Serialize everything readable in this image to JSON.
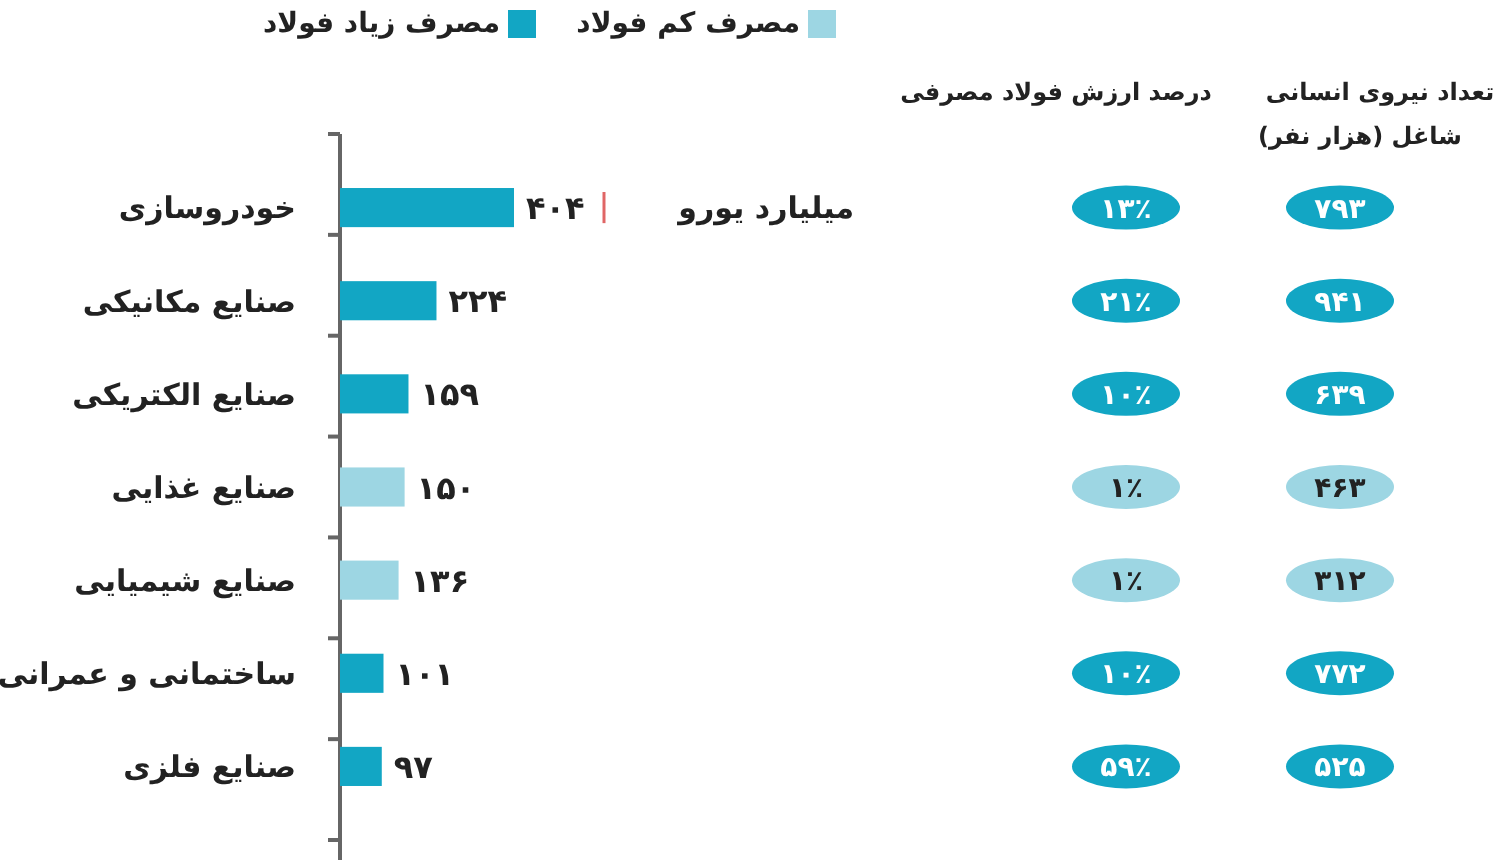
{
  "chart_data": [
    {
      "type": "bar",
      "orientation": "horizontal",
      "stacked": true,
      "legend": "top",
      "tick_labels": "y",
      "categories": [
        "خودروسازی",
        "صنایع مکانیکی",
        "صنایع الکتریکی",
        "صنایع غذایی",
        "صنایع شیمیایی",
        "ساختمانی و عمرانی",
        "صنایع فلزی"
      ],
      "series": [
        {
          "name": "مصرف زیاد فولاد",
          "color": "#12a6c4",
          "values": [
            404,
            224,
            159,
            null,
            null,
            101,
            97
          ],
          "value_labels": [
            "۴۰۴",
            "۲۲۴",
            "۱۵۹",
            null,
            null,
            "۱۰۱",
            "۹۷"
          ]
        },
        {
          "name": "مصرف کم فولاد",
          "color": "#9dd6e3",
          "values": [
            null,
            null,
            null,
            150,
            136,
            null,
            null
          ],
          "value_labels": [
            null,
            null,
            null,
            "۱۵۰",
            "۱۳۶",
            null,
            null
          ]
        }
      ],
      "annotations": [
        "میلیارد یورو"
      ]
    },
    {
      "type": "other",
      "title": "درصد ارزش فولاد مصرفی",
      "value_labels": [
        "۱۳٪",
        "۲۱٪",
        "۱۰٪",
        "۱٪",
        "۱٪",
        "۱۰٪",
        "۵۹٪"
      ],
      "colors": [
        "#12a6c4",
        "#12a6c4",
        "#12a6c4",
        "#9dd6e3",
        "#9dd6e3",
        "#12a6c4",
        "#12a6c4"
      ]
    },
    {
      "type": "other",
      "title": "تعداد نیروی انسانی",
      "subtitle": "شاغل (هزار نفر)",
      "value_labels": [
        "۷۹۳",
        "۹۴۱",
        "۶۳۹",
        "۴۶۳",
        "۳۱۲",
        "۷۷۲",
        "۵۲۵"
      ],
      "colors": [
        "#12a6c4",
        "#12a6c4",
        "#12a6c4",
        "#9dd6e3",
        "#9dd6e3",
        "#12a6c4",
        "#12a6c4"
      ]
    }
  ]
}
